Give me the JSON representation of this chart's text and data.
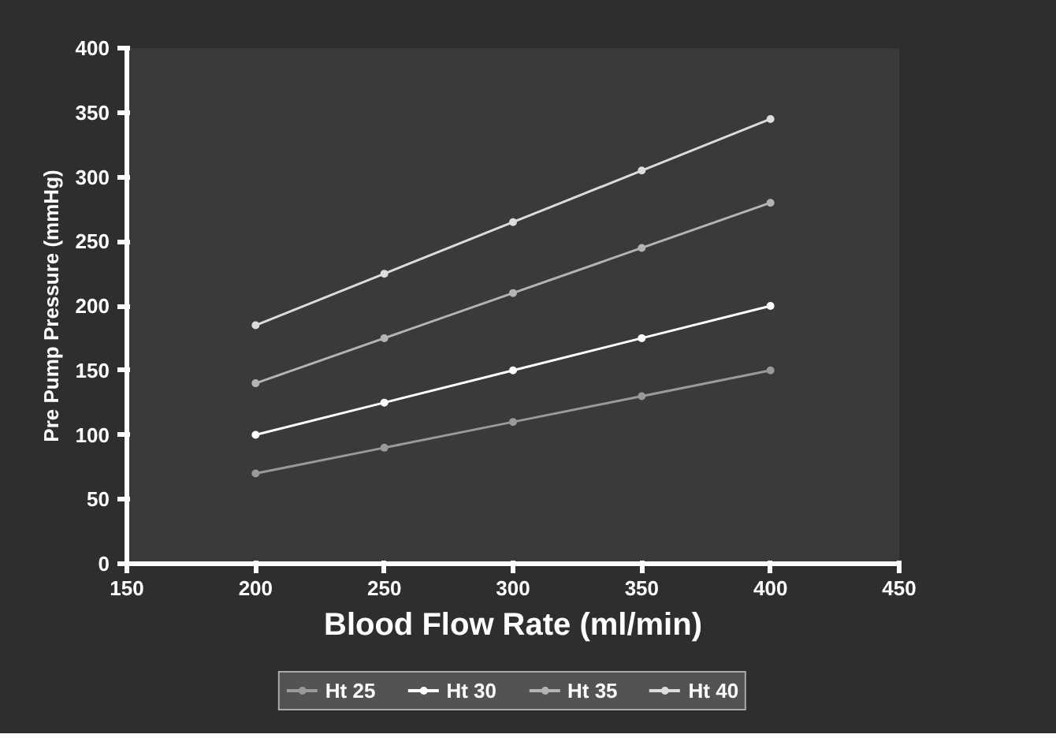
{
  "chart_data": {
    "type": "line",
    "xlabel": "Blood Flow Rate (ml/min)",
    "ylabel": "Pre Pump Pressure (mmHg)",
    "x": [
      200,
      250,
      300,
      350,
      400
    ],
    "series": [
      {
        "name": "Ht 25",
        "color": "#9a9a9a",
        "values": [
          70,
          90,
          110,
          130,
          150
        ]
      },
      {
        "name": "Ht 30",
        "color": "#ffffff",
        "values": [
          100,
          125,
          150,
          175,
          200
        ]
      },
      {
        "name": "Ht 35",
        "color": "#b4b4b4",
        "values": [
          140,
          175,
          210,
          245,
          280
        ]
      },
      {
        "name": "Ht 40",
        "color": "#dcdcdc",
        "values": [
          185,
          225,
          265,
          305,
          345
        ]
      }
    ],
    "xlim": [
      150,
      450
    ],
    "xticks": [
      150,
      200,
      250,
      300,
      350,
      400,
      450
    ],
    "ylim": [
      0,
      400
    ],
    "yticks": [
      0,
      50,
      100,
      150,
      200,
      250,
      300,
      350,
      400
    ],
    "grid": false,
    "legend": "bottom",
    "marker": "circle",
    "line_style": "solid"
  }
}
